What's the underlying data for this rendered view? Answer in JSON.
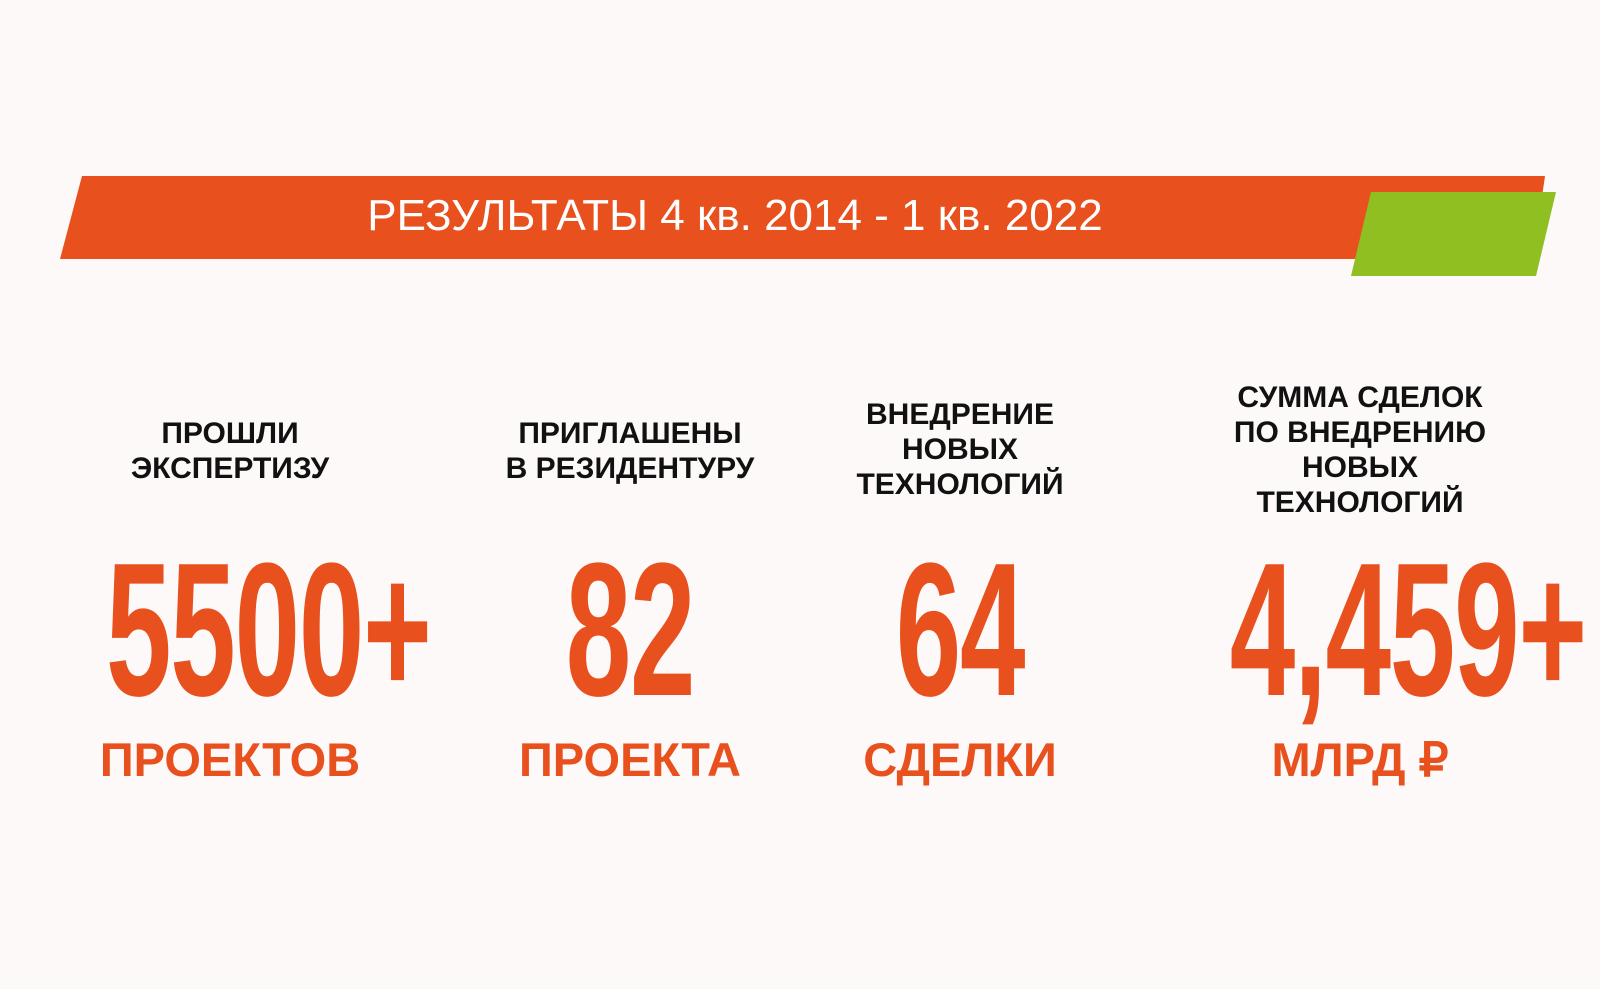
{
  "banner": {
    "title": "РЕЗУЛЬТАТЫ 4 кв. 2014 - 1 кв. 2022",
    "colors": {
      "primary": "#e8501e",
      "accent": "#8fbf21"
    }
  },
  "stats": [
    {
      "label": "ПРОШЛИ\nЭКСПЕРТИЗУ",
      "value": "5500+",
      "unit": "ПРОЕКТОВ"
    },
    {
      "label": "ПРИГЛАШЕНЫ\nВ РЕЗИДЕНТУРУ",
      "value": "82",
      "unit": "ПРОЕКТА"
    },
    {
      "label": "ВНЕДРЕНИЕ\nНОВЫХ\nТЕХНОЛОГИЙ",
      "value": "64",
      "unit": "СДЕЛКИ"
    },
    {
      "label": "СУММА СДЕЛОК\nПО ВНЕДРЕНИЮ\nНОВЫХ\nТЕХНОЛОГИЙ",
      "value": "4,459+",
      "unit": "МЛРД ₽"
    }
  ],
  "colors": {
    "background": "#fcf9f8",
    "accent_orange": "#e8501e",
    "label_text": "#111111"
  }
}
